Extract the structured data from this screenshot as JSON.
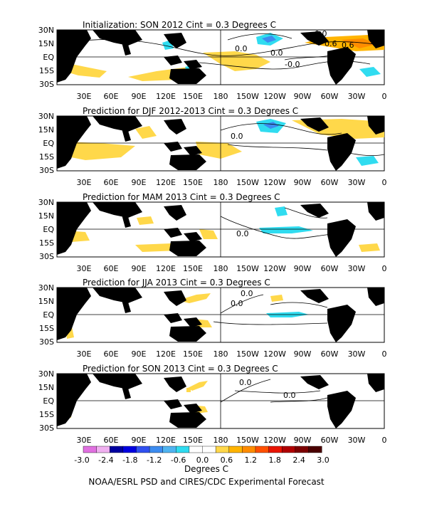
{
  "panels": [
    {
      "title": "Initialization: SON 2012  Cint = 0.3 Degrees C",
      "contour_labels": [
        "0.0",
        "0.0",
        "0.6",
        "0.6",
        "-0.0",
        "0.0"
      ]
    },
    {
      "title": "Prediction for DJF 2012-2013  Cint = 0.3 Degrees C",
      "contour_labels": [
        "0.0"
      ]
    },
    {
      "title": "Prediction for MAM 2013  Cint = 0.3 Degrees C",
      "contour_labels": [
        "0.0"
      ]
    },
    {
      "title": "Prediction for JJA 2013  Cint = 0.3 Degrees C",
      "contour_labels": [
        "0.0",
        "0.0"
      ]
    },
    {
      "title": "Prediction for SON 2013  Cint = 0.3 Degrees C",
      "contour_labels": [
        "0.0",
        "0.0"
      ]
    }
  ],
  "lat_labels": [
    "30N",
    "15N",
    "EQ",
    "15S",
    "30S"
  ],
  "lon_labels": [
    "30E",
    "60E",
    "90E",
    "120E",
    "150E",
    "180",
    "150W",
    "120W",
    "90W",
    "60W",
    "30W",
    "0"
  ],
  "colorbar": {
    "tick_labels": [
      "-3.0",
      "-2.4",
      "-1.8",
      "-1.2",
      "-0.6",
      "0.0",
      "0.6",
      "1.2",
      "1.8",
      "2.4",
      "3.0"
    ],
    "colors": [
      "#e070e0",
      "#f0b0f0",
      "#0000a0",
      "#0000e0",
      "#3050f0",
      "#3c8cf0",
      "#50b4f0",
      "#30dcf0",
      "#ffffff",
      "#ffffff",
      "#ffd84a",
      "#ffb400",
      "#ff8c00",
      "#ff5000",
      "#e81400",
      "#b00000",
      "#7c0000",
      "#4a0000"
    ],
    "unit_label": "Degrees C"
  },
  "footer": "NOAA/ESRL PSD and CIRES/CDC Experimental Forecast"
}
